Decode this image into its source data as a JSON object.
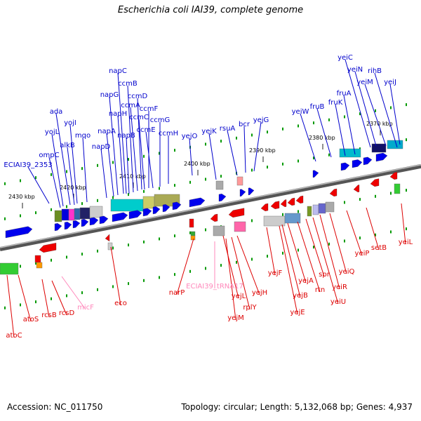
{
  "title": "Escherichia coli IAI39, complete genome",
  "footer": {
    "accession": "Accession: NC_011750",
    "summary": "Topology: circular; Length: 5,132,068 bp; Genes: 4,937"
  },
  "colors": {
    "forward_label": "#0000cc",
    "reverse_label": "#dd0000",
    "rna_label": "#ff88bb",
    "forward_gene": "#0000ee",
    "reverse_gene": "#ee0000",
    "tick": "#009900",
    "backbone": "#777777"
  },
  "ticks": [
    {
      "label": "2430 kbp"
    },
    {
      "label": "2420 kbp"
    },
    {
      "label": "2410 kbp"
    },
    {
      "label": "2400 kbp"
    },
    {
      "label": "2390 kbp"
    },
    {
      "label": "2380 kbp"
    },
    {
      "label": "2370 kbp"
    }
  ],
  "forward_labels": [
    {
      "text": "ECIAI39_2353"
    },
    {
      "text": "ompC"
    },
    {
      "text": "yojL"
    },
    {
      "text": "ada"
    },
    {
      "text": "alkB"
    },
    {
      "text": "yojI"
    },
    {
      "text": "mqo"
    },
    {
      "text": "napD"
    },
    {
      "text": "napA"
    },
    {
      "text": "napG"
    },
    {
      "text": "napH"
    },
    {
      "text": "napB"
    },
    {
      "text": "napC"
    },
    {
      "text": "ccmB"
    },
    {
      "text": "ccmA"
    },
    {
      "text": "ccmD"
    },
    {
      "text": "ccmC"
    },
    {
      "text": "ccmF"
    },
    {
      "text": "ccmE"
    },
    {
      "text": "ccmG"
    },
    {
      "text": "ccmH"
    },
    {
      "text": "yejO"
    },
    {
      "text": "yejK"
    },
    {
      "text": "rsuA"
    },
    {
      "text": "bcr"
    },
    {
      "text": "yejG"
    },
    {
      "text": "yeiW"
    },
    {
      "text": "fruB"
    },
    {
      "text": "fruK"
    },
    {
      "text": "fruA"
    },
    {
      "text": "yeiC"
    },
    {
      "text": "yeiN"
    },
    {
      "text": "yeiM"
    },
    {
      "text": "rihB"
    },
    {
      "text": "yeiJ"
    }
  ],
  "reverse_labels": [
    {
      "text": "atoC"
    },
    {
      "text": "atoS"
    },
    {
      "text": "rcsB"
    },
    {
      "text": "rcsD"
    },
    {
      "text": "eco"
    },
    {
      "text": "narP"
    },
    {
      "text": "yejL"
    },
    {
      "text": "yejM"
    },
    {
      "text": "rplY"
    },
    {
      "text": "yejH"
    },
    {
      "text": "yejF"
    },
    {
      "text": "yejE"
    },
    {
      "text": "yejB"
    },
    {
      "text": "yejA"
    },
    {
      "text": "rtn"
    },
    {
      "text": "spr"
    },
    {
      "text": "yeiU"
    },
    {
      "text": "yeiR"
    },
    {
      "text": "yeiQ"
    },
    {
      "text": "yeiP"
    },
    {
      "text": "setB"
    },
    {
      "text": "yeiL"
    }
  ],
  "rna_labels": [
    {
      "text": "micF"
    },
    {
      "text": "ECIAI39_tRNA17"
    }
  ]
}
